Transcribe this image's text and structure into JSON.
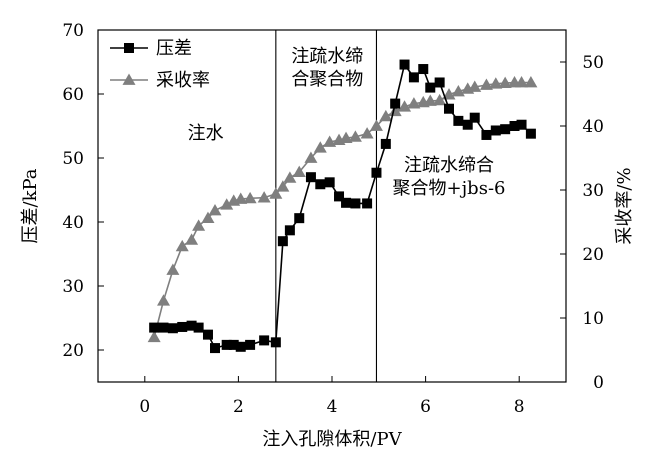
{
  "chart_data": {
    "type": "line",
    "xlabel": "注入孔隙体积/PV",
    "ylabel_left": "压差/kPa",
    "ylabel_right": "采收率/%",
    "xlim": [
      -1,
      9
    ],
    "ylim_left": [
      15,
      70
    ],
    "ylim_right": [
      0,
      55
    ],
    "x_ticks": [
      0,
      2,
      4,
      6,
      8
    ],
    "y_left_ticks": [
      20,
      30,
      40,
      50,
      60,
      70
    ],
    "y_right_ticks": [
      0,
      10,
      20,
      30,
      40,
      50
    ],
    "legend_position": "top-left",
    "stage_boundaries": [
      2.8,
      4.95
    ],
    "annotations": [
      {
        "id": "water",
        "lines": [
          "注水"
        ],
        "x": 1.3,
        "y": 53
      },
      {
        "id": "poly",
        "lines": [
          "注疏水缔",
          "合聚合物"
        ],
        "x": 3.9,
        "y": 65
      },
      {
        "id": "poly-jbs",
        "lines": [
          "注疏水缔合",
          "聚合物+jbs-6"
        ],
        "x": 6.5,
        "y": 48
      }
    ],
    "series": [
      {
        "name": "压差",
        "axis": "left",
        "marker": "square",
        "color": "#000000",
        "x": [
          0.2,
          0.4,
          0.6,
          0.8,
          1.0,
          1.15,
          1.35,
          1.5,
          1.75,
          1.9,
          2.05,
          2.25,
          2.55,
          2.8,
          2.95,
          3.1,
          3.3,
          3.55,
          3.75,
          3.95,
          4.15,
          4.3,
          4.5,
          4.75,
          4.95,
          5.15,
          5.35,
          5.55,
          5.75,
          5.95,
          6.1,
          6.3,
          6.5,
          6.7,
          6.9,
          7.05,
          7.3,
          7.5,
          7.7,
          7.9,
          8.05,
          8.25
        ],
        "y": [
          23.5,
          23.5,
          23.4,
          23.6,
          23.8,
          23.5,
          22.4,
          20.3,
          20.8,
          20.8,
          20.5,
          20.8,
          21.5,
          21.2,
          37.0,
          38.7,
          40.6,
          47.0,
          45.9,
          46.2,
          44.0,
          43.0,
          42.9,
          42.9,
          47.7,
          52.2,
          58.5,
          64.6,
          62.6,
          63.9,
          61.0,
          61.8,
          57.7,
          55.8,
          55.2,
          56.3,
          53.6,
          54.3,
          54.5,
          55.0,
          55.2,
          53.8
        ]
      },
      {
        "name": "采收率",
        "axis": "right",
        "marker": "triangle",
        "color": "#7f7f7f",
        "x": [
          0.2,
          0.4,
          0.6,
          0.8,
          1.0,
          1.15,
          1.35,
          1.5,
          1.75,
          1.9,
          2.05,
          2.25,
          2.55,
          2.8,
          2.95,
          3.1,
          3.3,
          3.55,
          3.75,
          3.95,
          4.15,
          4.3,
          4.5,
          4.75,
          4.95,
          5.15,
          5.35,
          5.55,
          5.75,
          5.95,
          6.1,
          6.3,
          6.5,
          6.7,
          6.9,
          7.05,
          7.3,
          7.5,
          7.7,
          7.9,
          8.05,
          8.25
        ],
        "y": [
          7.0,
          12.7,
          17.5,
          21.2,
          22.2,
          24.4,
          25.6,
          26.8,
          27.7,
          28.3,
          28.6,
          28.7,
          28.8,
          29.4,
          30.5,
          31.9,
          32.8,
          35.0,
          36.6,
          37.5,
          37.8,
          38.1,
          38.3,
          38.8,
          40.0,
          41.5,
          42.3,
          43.0,
          43.5,
          43.7,
          43.9,
          44.0,
          44.9,
          45.4,
          45.8,
          46.1,
          46.4,
          46.6,
          46.7,
          46.8,
          46.8,
          46.8
        ]
      }
    ]
  }
}
